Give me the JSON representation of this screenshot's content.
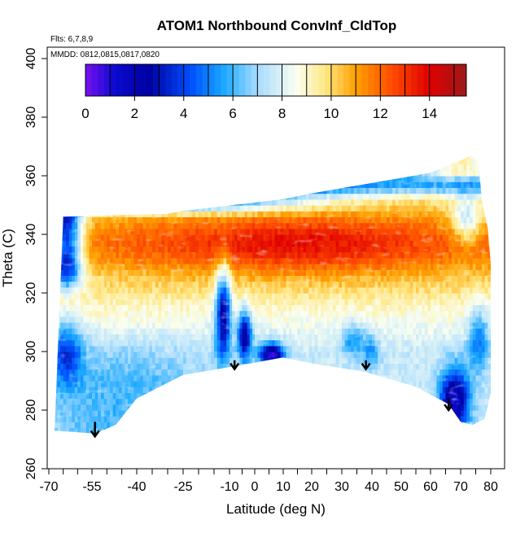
{
  "chart_data": {
    "type": "heatmap",
    "title": "ATOM1 Northbound ConvInf_CldTop",
    "annotations": {
      "flights": "Flts: 6,7,8,9",
      "dates": "MMDD: 0812,0815,0817,0820"
    },
    "xlabel": "Latitude (deg N)",
    "ylabel": "Theta (C)",
    "xlim": [
      -70,
      80
    ],
    "ylim": [
      260,
      400
    ],
    "x_ticks": [
      -70,
      -55,
      -40,
      -25,
      -10,
      0,
      10,
      20,
      30,
      40,
      50,
      60,
      70,
      80
    ],
    "x_ticks_minor": [
      -65,
      -60,
      -50,
      -45,
      -35,
      -30,
      -20,
      -15,
      -5,
      5,
      15,
      25,
      35,
      45,
      55,
      65,
      75
    ],
    "y_ticks": [
      260,
      280,
      300,
      320,
      340,
      360,
      380,
      400
    ],
    "colorbar": {
      "range": [
        0,
        15.5
      ],
      "ticks": [
        0,
        2,
        4,
        6,
        8,
        10,
        12,
        14
      ],
      "colors": [
        "#7a10f0",
        "#0a0ad0",
        "#0000a0",
        "#0050ff",
        "#19a8ff",
        "#a8dcff",
        "#fafff0",
        "#ffe680",
        "#ffa000",
        "#ff5000",
        "#e00000",
        "#9a1a1a"
      ],
      "color_positions": [
        0,
        1.2,
        2.6,
        4.3,
        5.6,
        7.0,
        8.6,
        9.8,
        11.0,
        12.4,
        14.0,
        15.5
      ]
    },
    "arrows_x": [
      -54,
      -8,
      38,
      66
    ],
    "arrows_y": [
      [
        276,
        271
      ],
      [
        297,
        294
      ],
      [
        297,
        294
      ],
      [
        284,
        280
      ]
    ],
    "domain": {
      "west_edge": -68,
      "east_edge": 80,
      "top": [
        [
          -65,
          346
        ],
        [
          -30,
          347
        ],
        [
          -25,
          348
        ],
        [
          10,
          352
        ],
        [
          20,
          354
        ],
        [
          60,
          361
        ],
        [
          74,
          367
        ],
        [
          76,
          364
        ],
        [
          77,
          352
        ],
        [
          79,
          342
        ],
        [
          80,
          330
        ],
        [
          80,
          308
        ]
      ],
      "bottom": [
        [
          -68,
          273
        ],
        [
          -54,
          272
        ],
        [
          -47,
          275
        ],
        [
          -40,
          284
        ],
        [
          -25,
          292
        ],
        [
          -8,
          295
        ],
        [
          10,
          298
        ],
        [
          20,
          296
        ],
        [
          38,
          293
        ],
        [
          55,
          288
        ],
        [
          66,
          282
        ],
        [
          70,
          276
        ],
        [
          74,
          275
        ],
        [
          78,
          277
        ],
        [
          80,
          286
        ]
      ]
    }
  }
}
